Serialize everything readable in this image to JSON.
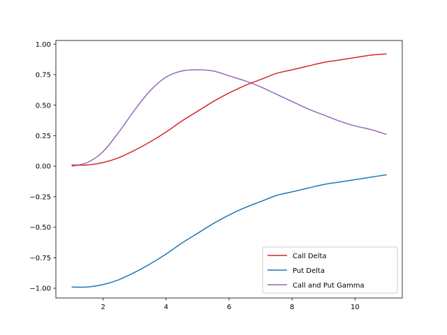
{
  "chart_data": {
    "type": "line",
    "title": "",
    "xlabel": "",
    "ylabel": "",
    "xlim": [
      0.5,
      11.5
    ],
    "ylim": [
      -1.08,
      1.03
    ],
    "xticks": [
      2,
      4,
      6,
      8,
      10
    ],
    "xtick_labels": [
      "2",
      "4",
      "6",
      "8",
      "10"
    ],
    "yticks": [
      -1.0,
      -0.75,
      -0.5,
      -0.25,
      0.0,
      0.25,
      0.5,
      0.75,
      1.0
    ],
    "ytick_labels": [
      "−1.00",
      "−0.75",
      "−0.50",
      "−0.25",
      "0.00",
      "0.25",
      "0.50",
      "0.75",
      "1.00"
    ],
    "grid": false,
    "legend_position": "lower-right",
    "x": [
      1.0,
      1.5,
      2.0,
      2.5,
      3.0,
      3.5,
      4.0,
      4.5,
      5.0,
      5.5,
      6.0,
      6.5,
      7.0,
      7.5,
      8.0,
      8.5,
      9.0,
      9.5,
      10.0,
      10.5,
      11.0
    ],
    "series": [
      {
        "name": "Call Delta",
        "color": "#d62728",
        "values": [
          0.01,
          0.01,
          0.03,
          0.07,
          0.13,
          0.2,
          0.28,
          0.37,
          0.45,
          0.53,
          0.6,
          0.66,
          0.71,
          0.76,
          0.79,
          0.82,
          0.85,
          0.87,
          0.89,
          0.91,
          0.92
        ]
      },
      {
        "name": "Put Delta",
        "color": "#1f77b4",
        "values": [
          -0.99,
          -0.99,
          -0.97,
          -0.93,
          -0.87,
          -0.8,
          -0.72,
          -0.63,
          -0.55,
          -0.47,
          -0.4,
          -0.34,
          -0.29,
          -0.24,
          -0.21,
          -0.18,
          -0.15,
          -0.13,
          -0.11,
          -0.09,
          -0.07
        ]
      },
      {
        "name": "Call and Put Gamma",
        "color": "#9467bd",
        "values": [
          0.0,
          0.03,
          0.12,
          0.28,
          0.46,
          0.62,
          0.73,
          0.78,
          0.79,
          0.78,
          0.74,
          0.7,
          0.65,
          0.59,
          0.53,
          0.47,
          0.42,
          0.37,
          0.33,
          0.3,
          0.26
        ]
      }
    ]
  }
}
